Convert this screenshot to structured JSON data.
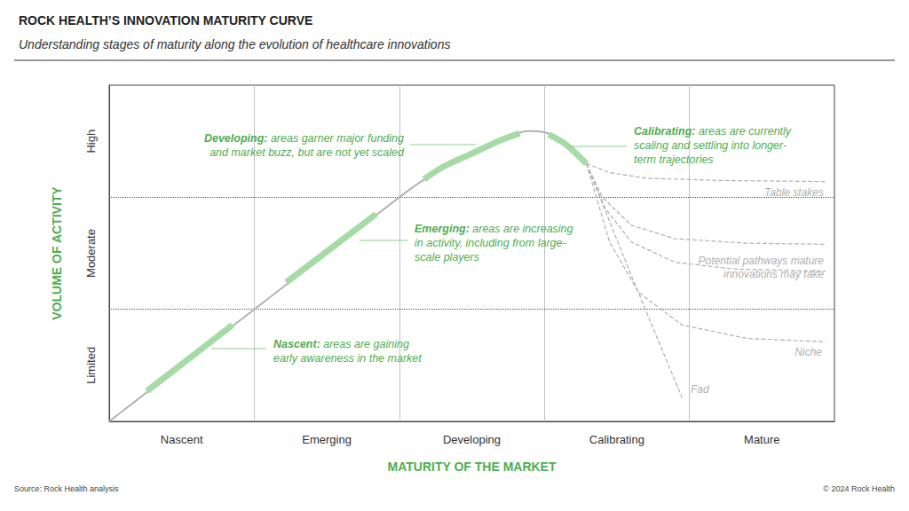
{
  "chart_data": {
    "type": "line",
    "title": "ROCK HEALTH’S INNOVATION MATURITY CURVE",
    "subtitle": "Understanding stages of maturity along the evolution of healthcare innovations",
    "x_label": "MATURITY OF THE MARKET",
    "y_label": "VOLUME OF ACTIVITY",
    "source": "Source: Rock Health analysis",
    "copyright": "© 2024 Rock Health",
    "xlim": [
      0,
      5
    ],
    "xticks": [
      {
        "value": 0.5,
        "label": "Nascent"
      },
      {
        "value": 1.5,
        "label": "Emerging"
      },
      {
        "value": 2.5,
        "label": "Developing"
      },
      {
        "value": 3.5,
        "label": "Calibrating"
      },
      {
        "value": 4.5,
        "label": "Mature"
      }
    ],
    "ylim": [
      0,
      3
    ],
    "yticks": [
      {
        "value": 0.5,
        "label": "Limited"
      },
      {
        "value": 1.5,
        "label": "Moderate"
      },
      {
        "value": 2.5,
        "label": "High"
      }
    ],
    "grid": true,
    "x_dividers": [
      1,
      2,
      3,
      4
    ],
    "y_dividers": [
      1,
      2
    ],
    "curve": {
      "color": "#b3b3b3",
      "x": [
        0,
        1,
        2,
        2.15,
        2.3,
        2.45,
        2.6,
        2.75,
        2.89,
        3.0,
        3.1,
        3.2,
        3.29
      ],
      "y": [
        0,
        1,
        2,
        2.14,
        2.26,
        2.37,
        2.46,
        2.54,
        2.59,
        2.58,
        2.52,
        2.43,
        2.3
      ]
    },
    "highlight_color": "#a6dba6",
    "highlights": [
      {
        "x": [
          0.26,
          0.85
        ],
        "y": [
          0.27,
          0.86
        ]
      },
      {
        "x": [
          1.22,
          1.84
        ],
        "y": [
          1.24,
          1.85
        ]
      },
      {
        "x": [
          2.17,
          2.3,
          2.5,
          2.7,
          2.83
        ],
        "y": [
          2.16,
          2.27,
          2.39,
          2.51,
          2.57
        ]
      },
      {
        "x": [
          3.03,
          3.15,
          3.29
        ],
        "y": [
          2.56,
          2.47,
          2.3
        ]
      }
    ],
    "annotation_color": "#4fae4f",
    "annotations": [
      {
        "label": "Nascent:",
        "lines": [
          "areas are gaining",
          "early awareness in the market"
        ]
      },
      {
        "label": "Emerging:",
        "lines": [
          "areas are increasing",
          "in activity, including from large-",
          "scale players"
        ]
      },
      {
        "label": "Developing:",
        "lines": [
          "areas garner major funding",
          "and market buzz, but are not yet scaled"
        ]
      },
      {
        "label": "Calibrating:",
        "lines": [
          "areas are currently",
          "scaling and settling into longer-",
          "term trajectories"
        ]
      }
    ],
    "pathway_color": "#b0b0b0",
    "pathway_line_style": "dashed",
    "pathway_marker": "arrow",
    "pathways": [
      {
        "label": "Table stakes",
        "x": [
          3.29,
          3.45,
          3.7,
          4.2,
          4.94
        ],
        "y": [
          2.3,
          2.22,
          2.17,
          2.15,
          2.14
        ]
      },
      {
        "x": [
          3.29,
          3.4,
          3.6,
          3.9,
          4.4,
          4.94
        ],
        "y": [
          2.3,
          2.0,
          1.75,
          1.63,
          1.59,
          1.58
        ]
      },
      {
        "x": [
          3.29,
          3.42,
          3.6,
          3.9,
          4.3,
          4.94
        ],
        "y": [
          2.3,
          1.9,
          1.6,
          1.42,
          1.36,
          1.34
        ]
      },
      {
        "label": "Niche",
        "x": [
          3.29,
          3.45,
          3.65,
          3.95,
          4.4,
          4.94
        ],
        "y": [
          2.3,
          1.6,
          1.15,
          0.86,
          0.74,
          0.71
        ]
      },
      {
        "label": "Fad",
        "x": [
          3.29,
          3.6,
          3.95
        ],
        "y": [
          2.3,
          1.3,
          0.21
        ]
      }
    ],
    "pathway_note": [
      "Potential pathways mature",
      "innovations may take"
    ]
  }
}
